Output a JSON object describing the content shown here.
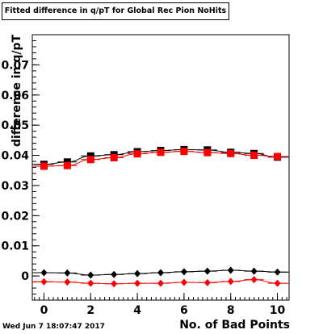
{
  "header": {
    "title": "Fitted difference in q/pT for Global Rec Pion NoHits"
  },
  "footer": {
    "timestamp": "Wed Jun  7 18:07:47 2017"
  },
  "chart_data": {
    "type": "scatter",
    "title": "Fitted difference in q/pT for Global Rec Pion NoHits",
    "xlabel": "No. of Bad Points",
    "ylabel": "difference in q/pT",
    "xlim": [
      -0.5,
      10.5
    ],
    "ylim": [
      -0.008,
      0.08
    ],
    "x_ticks": [
      0,
      2,
      4,
      6,
      8,
      10
    ],
    "x_tick_labels": [
      "0",
      "2",
      "4",
      "6",
      "8",
      "10"
    ],
    "y_ticks": [
      0,
      0.01,
      0.02,
      0.03,
      0.04,
      0.05,
      0.06,
      0.07
    ],
    "y_tick_labels": [
      "0",
      "0.01",
      "0.02",
      "0.03",
      "0.04",
      "0.05",
      "0.06",
      "0.07"
    ],
    "grid": false,
    "x": [
      0,
      1,
      2,
      3,
      4,
      5,
      6,
      7,
      8,
      9,
      10
    ],
    "series": [
      {
        "marker": "square",
        "color": "#000000",
        "values": [
          0.037,
          0.0378,
          0.0398,
          0.0402,
          0.0412,
          0.0416,
          0.0419,
          0.0418,
          0.041,
          0.0406,
          0.0394
        ]
      },
      {
        "marker": "square",
        "color": "#ff0000",
        "values": [
          0.0364,
          0.0366,
          0.0386,
          0.0392,
          0.0405,
          0.041,
          0.0413,
          0.0409,
          0.0406,
          0.04,
          0.0396
        ]
      },
      {
        "marker": "diamond",
        "color": "#000000",
        "values": [
          0.0011,
          0.001,
          0.0003,
          0.0005,
          0.0008,
          0.0011,
          0.0014,
          0.0016,
          0.0019,
          0.0016,
          0.0013
        ]
      },
      {
        "marker": "diamond",
        "color": "#ff0000",
        "values": [
          -0.0019,
          -0.002,
          -0.0024,
          -0.0026,
          -0.0024,
          -0.0024,
          -0.0021,
          -0.0022,
          -0.0018,
          -0.0012,
          -0.0024
        ]
      }
    ]
  }
}
